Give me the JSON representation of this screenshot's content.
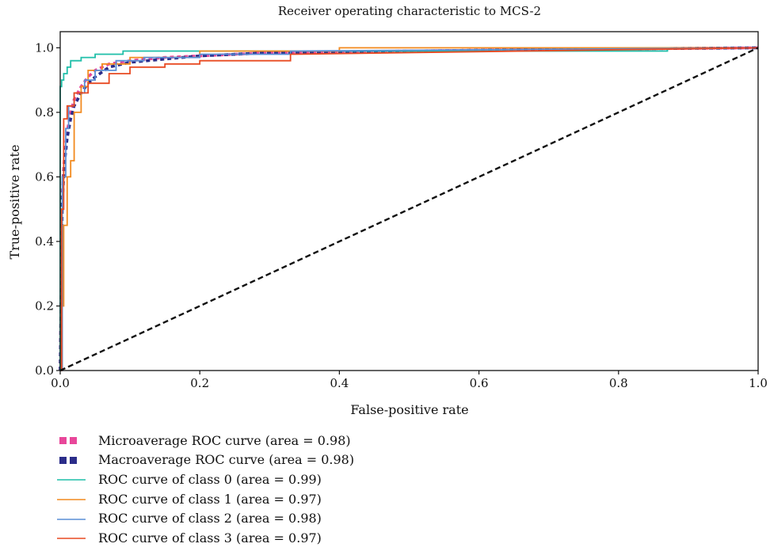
{
  "chart_data": {
    "type": "line",
    "title": "Receiver operating characteristic to MCS-2",
    "xlabel": "False-positive rate",
    "ylabel": "True-positive rate",
    "xlim": [
      0.0,
      1.0
    ],
    "ylim": [
      0.0,
      1.05
    ],
    "xticks": [
      "0.0",
      "0.2",
      "0.4",
      "0.6",
      "0.8",
      "1.0"
    ],
    "yticks": [
      "0.0",
      "0.2",
      "0.4",
      "0.6",
      "0.8",
      "1.0"
    ],
    "grid": false,
    "legend_position": "bottom-left outside",
    "series": [
      {
        "name": "Microaverage ROC curve (area = 0.98)",
        "color": "#e8479a",
        "style": "dotted",
        "x": [
          0,
          0.003,
          0.006,
          0.01,
          0.015,
          0.02,
          0.03,
          0.04,
          0.05,
          0.07,
          0.1,
          0.15,
          0.2,
          0.3,
          0.5,
          0.7,
          1.0
        ],
        "y": [
          0,
          0.55,
          0.66,
          0.74,
          0.8,
          0.84,
          0.88,
          0.91,
          0.93,
          0.95,
          0.96,
          0.97,
          0.975,
          0.985,
          0.99,
          0.995,
          1.0
        ]
      },
      {
        "name": "Macroaverage ROC curve (area = 0.98)",
        "color": "#2b2d8a",
        "style": "dotted",
        "x": [
          0,
          0.003,
          0.006,
          0.01,
          0.015,
          0.02,
          0.03,
          0.04,
          0.05,
          0.07,
          0.1,
          0.15,
          0.2,
          0.3,
          0.5,
          0.7,
          1.0
        ],
        "y": [
          0,
          0.52,
          0.64,
          0.72,
          0.78,
          0.82,
          0.86,
          0.89,
          0.91,
          0.94,
          0.955,
          0.965,
          0.975,
          0.985,
          0.99,
          0.995,
          1.0
        ]
      },
      {
        "name": "ROC curve of class 0 (area = 0.99)",
        "color": "#1fbfa9",
        "style": "solid",
        "x": [
          0,
          0,
          0.002,
          0.002,
          0.005,
          0.005,
          0.01,
          0.01,
          0.015,
          0.015,
          0.03,
          0.03,
          0.05,
          0.05,
          0.09,
          0.09,
          0.13,
          0.13,
          0.33,
          0.33,
          0.71,
          0.71,
          0.87,
          0.87,
          1.0
        ],
        "y": [
          0,
          0.88,
          0.88,
          0.9,
          0.9,
          0.92,
          0.92,
          0.94,
          0.94,
          0.96,
          0.96,
          0.97,
          0.97,
          0.98,
          0.98,
          0.99,
          0.99,
          0.99,
          0.99,
          0.99,
          0.99,
          0.99,
          0.99,
          1.0,
          1.0
        ]
      },
      {
        "name": "ROC curve of class 1 (area = 0.97)",
        "color": "#f28a1f",
        "style": "solid",
        "x": [
          0,
          0.002,
          0.002,
          0.005,
          0.005,
          0.01,
          0.01,
          0.015,
          0.015,
          0.02,
          0.02,
          0.03,
          0.03,
          0.04,
          0.04,
          0.06,
          0.06,
          0.1,
          0.1,
          0.2,
          0.2,
          0.4,
          0.4,
          1.0
        ],
        "y": [
          0,
          0,
          0.2,
          0.2,
          0.45,
          0.45,
          0.6,
          0.6,
          0.65,
          0.65,
          0.8,
          0.8,
          0.88,
          0.88,
          0.93,
          0.93,
          0.95,
          0.95,
          0.97,
          0.97,
          0.99,
          0.99,
          1.0,
          1.0
        ]
      },
      {
        "name": "ROC curve of class 2 (area = 0.98)",
        "color": "#5a8fd6",
        "style": "solid",
        "x": [
          0,
          0.003,
          0.003,
          0.008,
          0.008,
          0.012,
          0.012,
          0.02,
          0.02,
          0.035,
          0.035,
          0.05,
          0.05,
          0.08,
          0.08,
          0.12,
          0.12,
          0.2,
          0.2,
          0.33,
          0.33,
          1.0
        ],
        "y": [
          0,
          0,
          0.6,
          0.6,
          0.75,
          0.75,
          0.82,
          0.82,
          0.86,
          0.86,
          0.9,
          0.9,
          0.93,
          0.93,
          0.96,
          0.96,
          0.97,
          0.97,
          0.98,
          0.98,
          0.99,
          1.0
        ]
      },
      {
        "name": "ROC curve of class 3 (area = 0.97)",
        "color": "#e84a22",
        "style": "solid",
        "x": [
          0,
          0.002,
          0.002,
          0.005,
          0.005,
          0.01,
          0.01,
          0.02,
          0.02,
          0.04,
          0.04,
          0.07,
          0.07,
          0.1,
          0.1,
          0.15,
          0.15,
          0.2,
          0.2,
          0.33,
          0.33,
          1.0
        ],
        "y": [
          0,
          0,
          0.5,
          0.5,
          0.78,
          0.78,
          0.82,
          0.82,
          0.86,
          0.86,
          0.89,
          0.89,
          0.92,
          0.92,
          0.94,
          0.94,
          0.95,
          0.95,
          0.96,
          0.96,
          0.98,
          1.0
        ]
      },
      {
        "name": "",
        "color": "#111111",
        "style": "dashed",
        "role": "chance-diagonal",
        "x": [
          0,
          1
        ],
        "y": [
          0,
          1
        ]
      }
    ]
  }
}
